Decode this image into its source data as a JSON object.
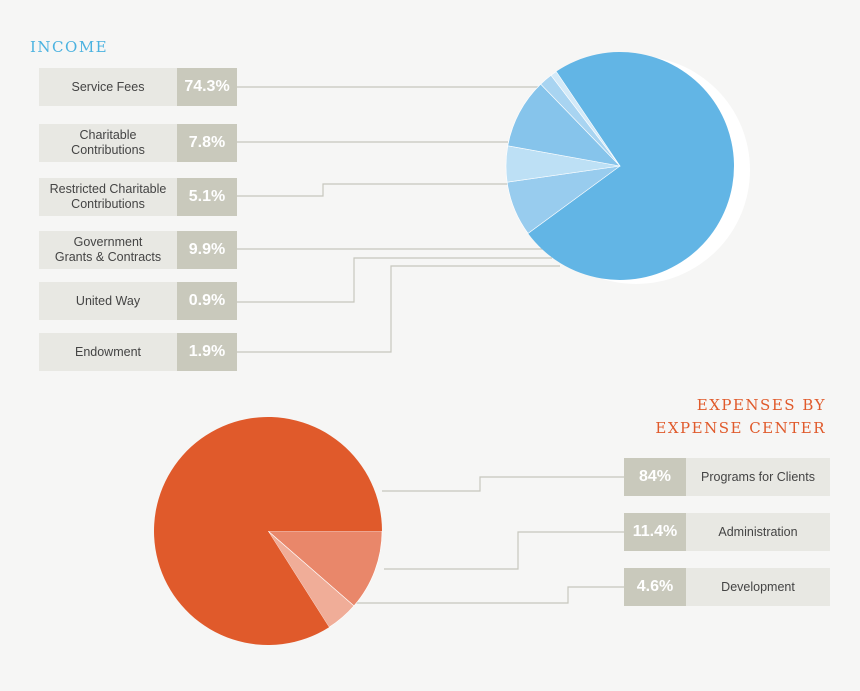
{
  "chart_data": [
    {
      "type": "pie",
      "title": "INCOME",
      "categories": [
        "Service Fees",
        "Charitable Contributions",
        "Restricted Charitable Contributions",
        "Government Grants & Contracts",
        "United Way",
        "Endowment"
      ],
      "labels": [
        [
          "Service Fees"
        ],
        [
          "Charitable",
          "Contributions"
        ],
        [
          "Restricted Charitable",
          "Contributions"
        ],
        [
          "Government",
          "Grants & Contracts"
        ],
        [
          "United Way"
        ],
        [
          "Endowment"
        ]
      ],
      "values": [
        74.3,
        7.8,
        5.1,
        9.9,
        0.9,
        1.9
      ],
      "value_labels": [
        "74.3%",
        "7.8%",
        "5.1%",
        "9.9%",
        "0.9%",
        "1.9%"
      ],
      "slice_colors": [
        "#62b5e5",
        "#98ccee",
        "#bde0f5",
        "#86c4eb",
        "#d4eaf8",
        "#a8d4f1"
      ],
      "slice_order": [
        0,
        1,
        2,
        3,
        5,
        4
      ]
    },
    {
      "type": "pie",
      "title": "EXPENSES BY EXPENSE CENTER",
      "title_lines": [
        "EXPENSES BY",
        "EXPENSE CENTER"
      ],
      "categories": [
        "Programs for Clients",
        "Administration",
        "Development"
      ],
      "values": [
        84,
        11.4,
        4.6
      ],
      "value_labels": [
        "84%",
        "11.4%",
        "4.6%"
      ],
      "slice_colors": [
        "#e05a2b",
        "#e9876a",
        "#f0ad98"
      ]
    }
  ],
  "colors": {
    "income_accent": "#4bb2e0",
    "expense_accent": "#e05a2b",
    "label_bg": "#e8e8e3",
    "value_bg": "#c9c9bc",
    "leader_line": "#c7c7bd"
  }
}
